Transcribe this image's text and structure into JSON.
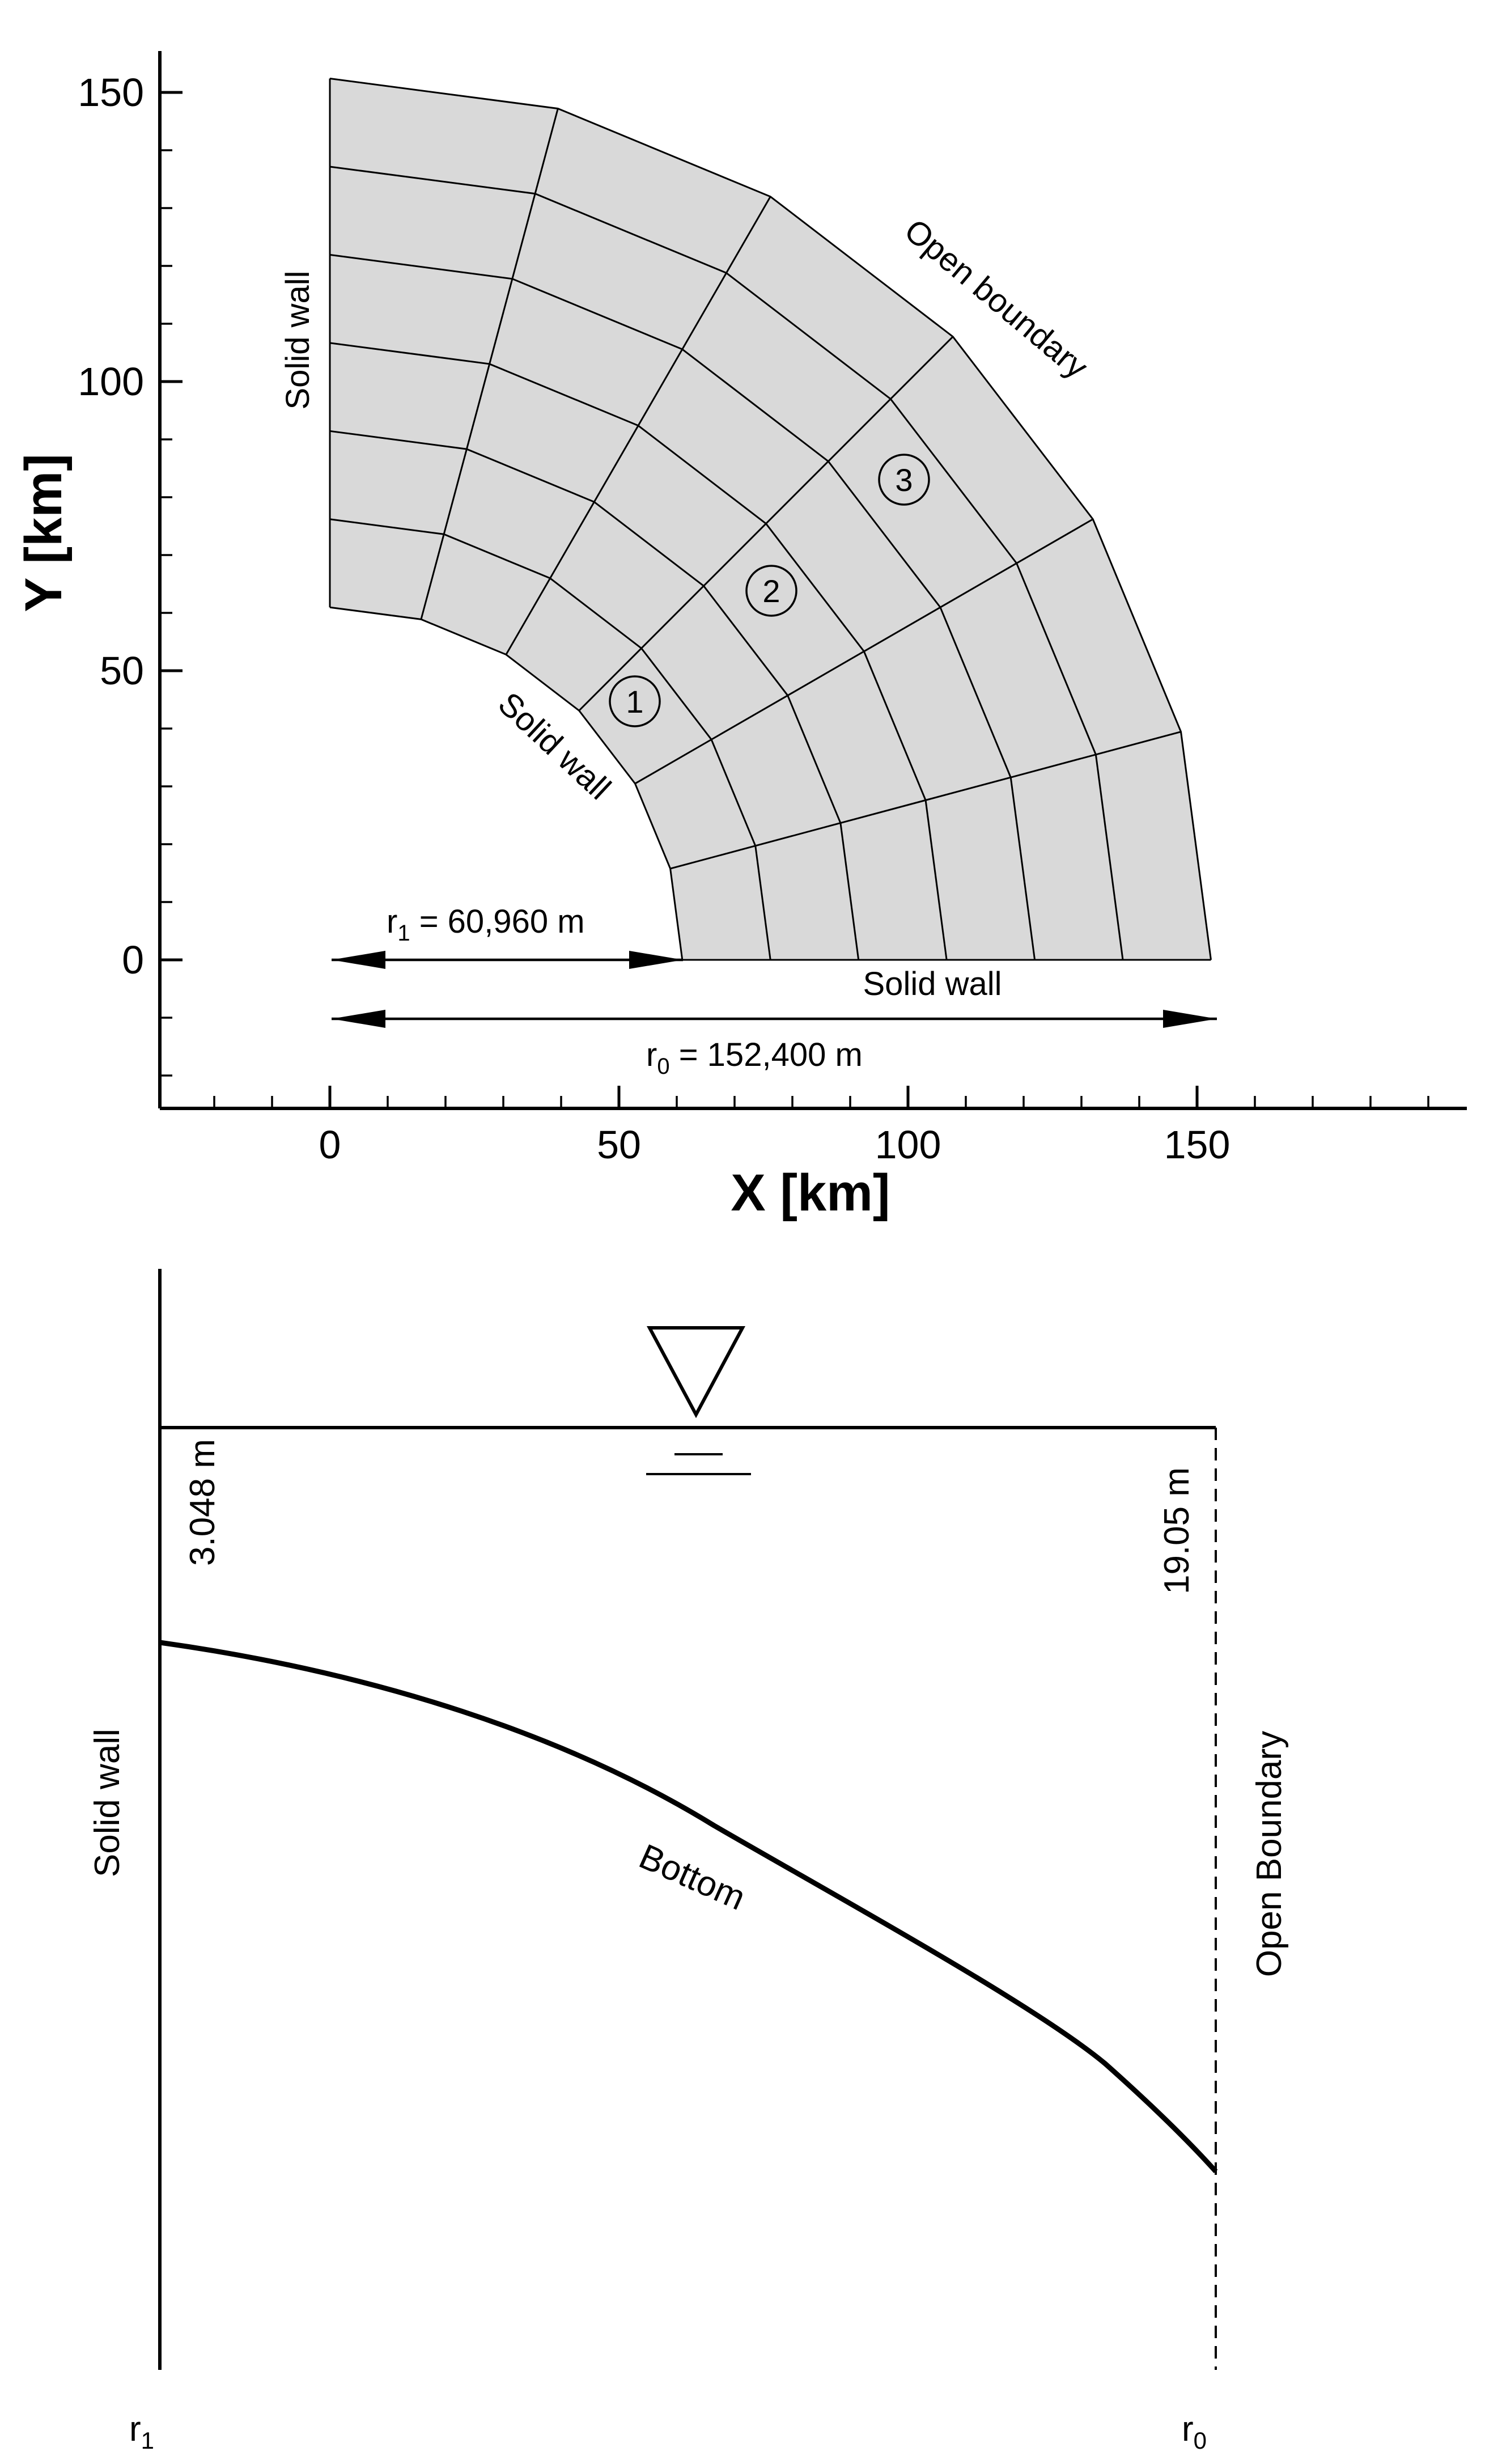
{
  "top_plot": {
    "x_axis": {
      "title": "X [km]",
      "range": [
        -28,
        197
      ],
      "major_ticks": [
        0,
        50,
        100,
        150
      ],
      "minor_ticks": [
        -20,
        -10,
        10,
        20,
        30,
        40,
        60,
        70,
        80,
        90,
        110,
        120,
        130,
        140,
        160,
        170,
        180,
        190
      ]
    },
    "y_axis": {
      "title": "Y [km]",
      "range": [
        -27,
        158
      ],
      "major_ticks": [
        0,
        50,
        100,
        150
      ],
      "minor_ticks": [
        -20,
        -10,
        10,
        20,
        30,
        40,
        60,
        70,
        80,
        90,
        110,
        120,
        130,
        140
      ]
    },
    "domain": {
      "r_inner_km": 60.96,
      "r_outer_km": 152.4,
      "radial_divisions": 6,
      "angular_divisions": 6
    },
    "labels": {
      "solid_wall_left": "Solid wall",
      "solid_wall_arc": "Solid wall",
      "open_boundary": "Open boundary",
      "solid_wall_bottom": "Solid wall"
    },
    "stations": [
      "1",
      "2",
      "3"
    ],
    "dimensions": {
      "r1_label": "r",
      "r1_sub": "1",
      "r1_value": " = 60,960 m",
      "r0_label": "r",
      "r0_sub": "0",
      "r0_value": " = 152,400 m"
    }
  },
  "profile": {
    "depth_inner": "3.048 m",
    "depth_outer": "19.05 m",
    "bottom_label": "Bottom",
    "left_label": "Solid wall",
    "right_label": "Open Boundary",
    "r1_label": "r",
    "r1_sub": "1",
    "r0_label": "r",
    "r0_sub": "0"
  }
}
